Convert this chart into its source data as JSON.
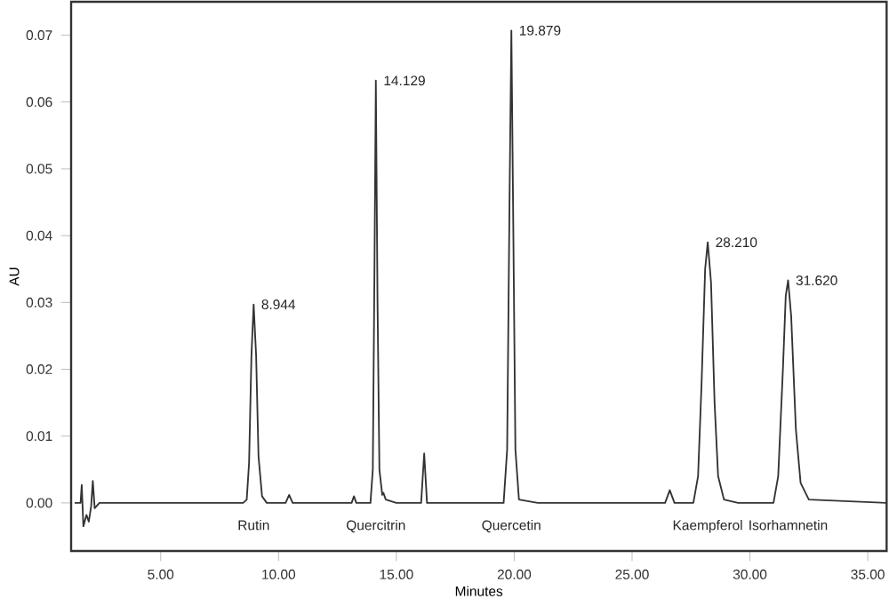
{
  "chart_data": {
    "type": "line",
    "xlabel": "Minutes",
    "ylabel": "AU",
    "xlim": [
      1.2,
      35.8
    ],
    "ylim": [
      -0.0072,
      0.075
    ],
    "xticks": [
      {
        "value": 5,
        "label": "5.00"
      },
      {
        "value": 10,
        "label": "10.00"
      },
      {
        "value": 15,
        "label": "15.00"
      },
      {
        "value": 20,
        "label": "20.00"
      },
      {
        "value": 25,
        "label": "25.00"
      },
      {
        "value": 30,
        "label": "30.00"
      },
      {
        "value": 35,
        "label": "35.00"
      }
    ],
    "yticks": [
      {
        "value": 0,
        "label": "0.00"
      },
      {
        "value": 0.01,
        "label": "0.01"
      },
      {
        "value": 0.02,
        "label": "0.02"
      },
      {
        "value": 0.03,
        "label": "0.03"
      },
      {
        "value": 0.04,
        "label": "0.04"
      },
      {
        "value": 0.05,
        "label": "0.05"
      },
      {
        "value": 0.06,
        "label": "0.06"
      },
      {
        "value": 0.07,
        "label": "0.07"
      }
    ],
    "grid": false,
    "marker": "none",
    "line_style": "solid",
    "series": [
      {
        "color": "#333333",
        "x": [
          1.35,
          1.6,
          1.65,
          1.72,
          1.85,
          1.95,
          2.05,
          2.12,
          2.2,
          2.4,
          3.0,
          8.5,
          8.65,
          8.75,
          8.85,
          8.944,
          9.05,
          9.15,
          9.3,
          9.5,
          10.3,
          10.45,
          10.6,
          13.1,
          13.2,
          13.3,
          13.9,
          14.0,
          14.07,
          14.129,
          14.2,
          14.28,
          14.4,
          14.45,
          14.55,
          15.0,
          16.05,
          16.18,
          16.3,
          19.55,
          19.7,
          19.8,
          19.879,
          19.95,
          20.05,
          20.2,
          21.0,
          26.4,
          26.6,
          26.8,
          27.6,
          27.8,
          27.95,
          28.1,
          28.21,
          28.35,
          28.5,
          28.65,
          28.9,
          29.5,
          31.0,
          31.2,
          31.4,
          31.52,
          31.62,
          31.75,
          31.95,
          32.15,
          32.5,
          35.8
        ],
        "values": [
          0.0,
          0.0,
          0.0027,
          -0.0035,
          -0.0018,
          -0.0028,
          -0.0005,
          0.0033,
          -0.0008,
          0.0,
          0.0,
          0.0,
          0.0005,
          0.006,
          0.022,
          0.0297,
          0.022,
          0.007,
          0.001,
          0.0,
          0.0,
          0.0012,
          0.0,
          0.0,
          0.001,
          0.0,
          0.0,
          0.005,
          0.035,
          0.0632,
          0.03,
          0.005,
          0.0012,
          0.0015,
          0.0005,
          0.0,
          0.0,
          0.0074,
          0.0,
          0.0,
          0.008,
          0.045,
          0.0707,
          0.045,
          0.008,
          0.0005,
          0.0,
          0.0,
          0.0019,
          0.0,
          0.0,
          0.004,
          0.018,
          0.035,
          0.039,
          0.033,
          0.015,
          0.004,
          0.0005,
          0.0,
          0.0,
          0.004,
          0.02,
          0.031,
          0.0333,
          0.028,
          0.011,
          0.003,
          0.0005,
          0.0
        ]
      }
    ],
    "annotations": [
      {
        "text": "8.944",
        "x": 8.944,
        "y": 0.0297
      },
      {
        "text": "14.129",
        "x": 14.129,
        "y": 0.0632
      },
      {
        "text": "19.879",
        "x": 19.879,
        "y": 0.0707
      },
      {
        "text": "28.210",
        "x": 28.21,
        "y": 0.039
      },
      {
        "text": "31.620",
        "x": 31.62,
        "y": 0.0333
      },
      "Rutin",
      "Quercitrin",
      "Quercetin",
      "Kaempferol",
      "Isorhamnetin"
    ]
  }
}
